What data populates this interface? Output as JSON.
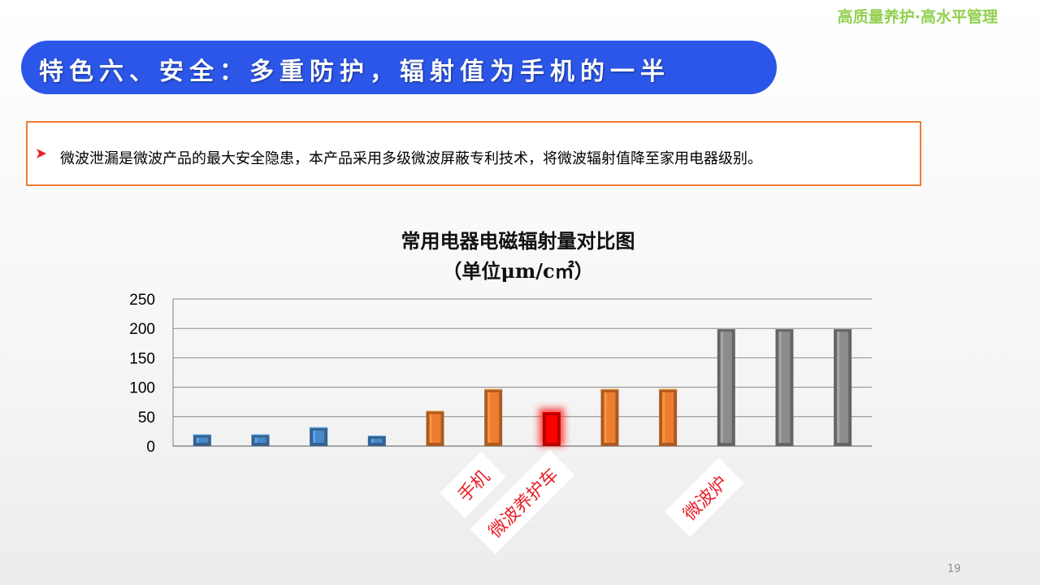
{
  "header": {
    "brand": "高质量养护·高水平管理",
    "title": "特色六、安全：多重防护，辐射值为手机的一半"
  },
  "note": {
    "text": "微波泄漏是微波产品的最大安全隐患，本产品采用多级微波屏蔽专利技术，将微波辐射值降至家用电器级别。"
  },
  "chart_data": {
    "type": "bar",
    "title": "常用电器电磁辐射量对比图",
    "subtitle": "（单位μm/c㎡）",
    "ylim": [
      0,
      250
    ],
    "yticks": [
      "250",
      "200",
      "150",
      "100",
      "50",
      "0"
    ],
    "grid": true,
    "values": [
      20,
      20,
      32,
      18,
      60,
      97,
      58,
      97,
      97,
      200,
      200,
      200
    ],
    "bar_colors": [
      "#4a88c7",
      "#4a88c7",
      "#4a88c7",
      "#4a88c7",
      "#ed7d31",
      "#ed7d31",
      "#ff0000",
      "#ed7d31",
      "#ed7d31",
      "#8c8c8c",
      "#8c8c8c",
      "#8c8c8c"
    ],
    "annotations": [
      {
        "text": "手机"
      },
      {
        "text": "微波养护车"
      },
      {
        "text": "微波炉"
      }
    ]
  },
  "page": {
    "number": "19"
  }
}
